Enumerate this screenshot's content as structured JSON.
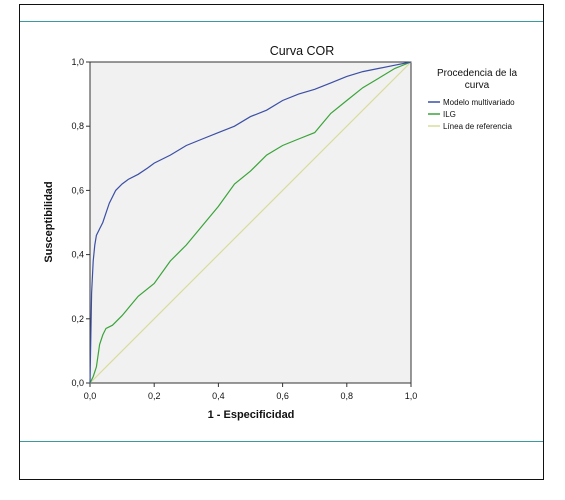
{
  "chart_data": {
    "type": "line",
    "title": "Curva COR",
    "xlabel": "1 - Especificidad",
    "ylabel": "Susceptibilidad",
    "xlim": [
      0,
      1
    ],
    "ylim": [
      0,
      1
    ],
    "x_ticks": [
      "0,0",
      "0,2",
      "0,4",
      "0,6",
      "0,8",
      "1,0"
    ],
    "y_ticks": [
      "0,0",
      "0,2",
      "0,4",
      "0,6",
      "0,8",
      "1,0"
    ],
    "grid": false,
    "legend": {
      "title": "Procedencia de la curva",
      "placement": "right"
    },
    "series": [
      {
        "name": "Modelo multivariado",
        "color": "#3b4fa6",
        "points": [
          [
            0.0,
            0.0
          ],
          [
            0.005,
            0.28
          ],
          [
            0.01,
            0.38
          ],
          [
            0.015,
            0.43
          ],
          [
            0.02,
            0.46
          ],
          [
            0.03,
            0.48
          ],
          [
            0.04,
            0.5
          ],
          [
            0.05,
            0.53
          ],
          [
            0.06,
            0.56
          ],
          [
            0.08,
            0.6
          ],
          [
            0.1,
            0.62
          ],
          [
            0.12,
            0.635
          ],
          [
            0.15,
            0.65
          ],
          [
            0.18,
            0.67
          ],
          [
            0.2,
            0.685
          ],
          [
            0.25,
            0.71
          ],
          [
            0.3,
            0.74
          ],
          [
            0.35,
            0.76
          ],
          [
            0.4,
            0.78
          ],
          [
            0.45,
            0.8
          ],
          [
            0.5,
            0.83
          ],
          [
            0.55,
            0.85
          ],
          [
            0.6,
            0.88
          ],
          [
            0.65,
            0.9
          ],
          [
            0.7,
            0.915
          ],
          [
            0.75,
            0.935
          ],
          [
            0.8,
            0.955
          ],
          [
            0.85,
            0.97
          ],
          [
            0.9,
            0.98
          ],
          [
            0.95,
            0.99
          ],
          [
            1.0,
            1.0
          ]
        ]
      },
      {
        "name": "ILG",
        "color": "#3aa43a",
        "points": [
          [
            0.0,
            0.0
          ],
          [
            0.01,
            0.02
          ],
          [
            0.02,
            0.05
          ],
          [
            0.03,
            0.12
          ],
          [
            0.04,
            0.15
          ],
          [
            0.05,
            0.17
          ],
          [
            0.07,
            0.18
          ],
          [
            0.1,
            0.21
          ],
          [
            0.15,
            0.27
          ],
          [
            0.2,
            0.31
          ],
          [
            0.25,
            0.38
          ],
          [
            0.3,
            0.43
          ],
          [
            0.35,
            0.49
          ],
          [
            0.4,
            0.55
          ],
          [
            0.45,
            0.62
          ],
          [
            0.5,
            0.66
          ],
          [
            0.55,
            0.71
          ],
          [
            0.6,
            0.74
          ],
          [
            0.65,
            0.76
          ],
          [
            0.7,
            0.78
          ],
          [
            0.75,
            0.84
          ],
          [
            0.8,
            0.88
          ],
          [
            0.85,
            0.92
          ],
          [
            0.9,
            0.95
          ],
          [
            0.95,
            0.98
          ],
          [
            1.0,
            1.0
          ]
        ]
      },
      {
        "name": "Línea de referencia",
        "color": "#d9dc9a",
        "points": [
          [
            0.0,
            0.0
          ],
          [
            1.0,
            1.0
          ]
        ]
      }
    ]
  }
}
